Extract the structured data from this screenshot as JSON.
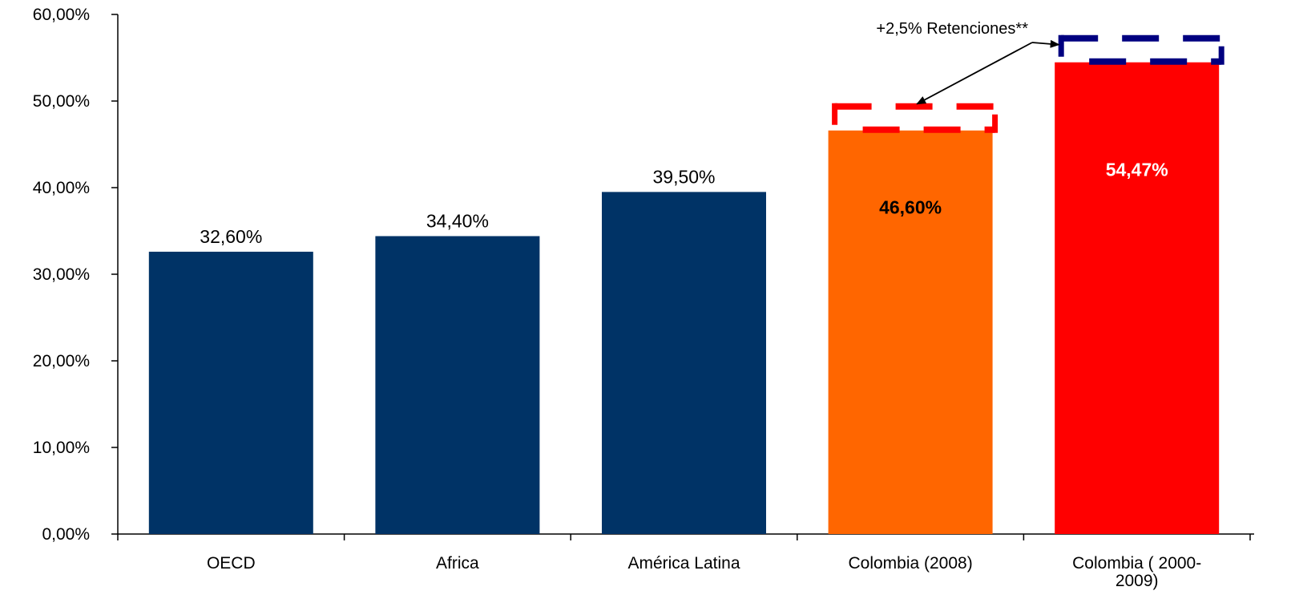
{
  "chart_data": {
    "type": "bar",
    "title": "",
    "xlabel": "",
    "ylabel": "",
    "ylim": [
      0,
      60
    ],
    "yticks": [
      "0,00%",
      "10,00%",
      "20,00%",
      "30,00%",
      "40,00%",
      "50,00%",
      "60,00%"
    ],
    "grid": false,
    "categories": [
      [
        "OECD"
      ],
      [
        "Africa"
      ],
      [
        "América Latina"
      ],
      [
        "Colombia (2008)"
      ],
      [
        "Colombia ( 2000-",
        "2009)"
      ]
    ],
    "values": [
      32.6,
      34.4,
      39.5,
      46.6,
      54.47
    ],
    "value_labels": [
      "32,60%",
      "34,40%",
      "39,50%",
      "46,60%",
      "54,47%"
    ],
    "bar_colors": [
      "#003366",
      "#003366",
      "#003366",
      "#FF6600",
      "#FF0000"
    ],
    "label_inside": [
      false,
      false,
      false,
      true,
      true
    ],
    "label_colors": [
      "#000000",
      "#000000",
      "#000000",
      "#000000",
      "#FFFFFF"
    ],
    "extensions": [
      {
        "category_index": 3,
        "from": 46.6,
        "to": 49.1,
        "color": "#FF0000"
      },
      {
        "category_index": 4,
        "from": 54.47,
        "to": 56.97,
        "color": "#000080"
      }
    ],
    "annotation": {
      "text": "+2,5% Retenciones**",
      "targets": [
        3,
        4
      ]
    }
  }
}
